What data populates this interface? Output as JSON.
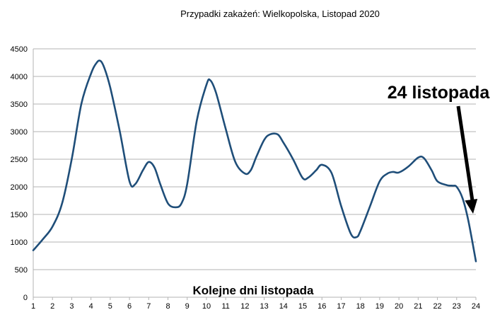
{
  "chart_data": {
    "type": "line",
    "title": "Przypadki zakażeń: Wielkopolska, Listopad 2020",
    "xlabel": "Kolejne dni listopada",
    "ylabel": "",
    "x_ticks": [
      "1",
      "2",
      "3",
      "4",
      "5",
      "6",
      "7",
      "8",
      "9",
      "10",
      "11",
      "12",
      "13",
      "14",
      "15",
      "16",
      "17",
      "18",
      "19",
      "20",
      "21",
      "22",
      "23",
      "24"
    ],
    "y_ticks": [
      0,
      500,
      1000,
      1500,
      2000,
      2500,
      3000,
      3500,
      4000,
      4500
    ],
    "ylim": [
      0,
      4500
    ],
    "xlim": [
      1,
      24
    ],
    "grid": true,
    "line_color": "#1f4e79",
    "series": [
      {
        "x": [
          1,
          1.5,
          2,
          2.5,
          3,
          3.5,
          4,
          4.3,
          4.5,
          4.7,
          5,
          5.5,
          6,
          6.3,
          6.7,
          7,
          7.3,
          7.6,
          8,
          8.4,
          8.7,
          9,
          9.5,
          10,
          10.2,
          10.5,
          11,
          11.5,
          12,
          12.3,
          12.6,
          13,
          13.3,
          13.7,
          14,
          14.5,
          15,
          15.3,
          15.7,
          16,
          16.5,
          17,
          17.5,
          17.8,
          18,
          18.5,
          19,
          19.4,
          19.7,
          20,
          20.5,
          21,
          21.3,
          21.7,
          22,
          22.5,
          22.8,
          23,
          23.3,
          23.6,
          24
        ],
        "values": [
          850,
          1050,
          1280,
          1700,
          2500,
          3500,
          4050,
          4250,
          4280,
          4150,
          3800,
          3000,
          2100,
          2050,
          2300,
          2450,
          2350,
          2050,
          1700,
          1630,
          1700,
          2050,
          3200,
          3850,
          3930,
          3700,
          3050,
          2450,
          2240,
          2300,
          2550,
          2850,
          2950,
          2950,
          2800,
          2500,
          2160,
          2170,
          2300,
          2400,
          2250,
          1650,
          1150,
          1090,
          1200,
          1650,
          2100,
          2240,
          2270,
          2260,
          2370,
          2530,
          2520,
          2300,
          2100,
          2030,
          2020,
          2000,
          1800,
          1400,
          650
        ]
      }
    ],
    "annotation": {
      "text": "24 listopada",
      "points_to_x": 24
    }
  }
}
